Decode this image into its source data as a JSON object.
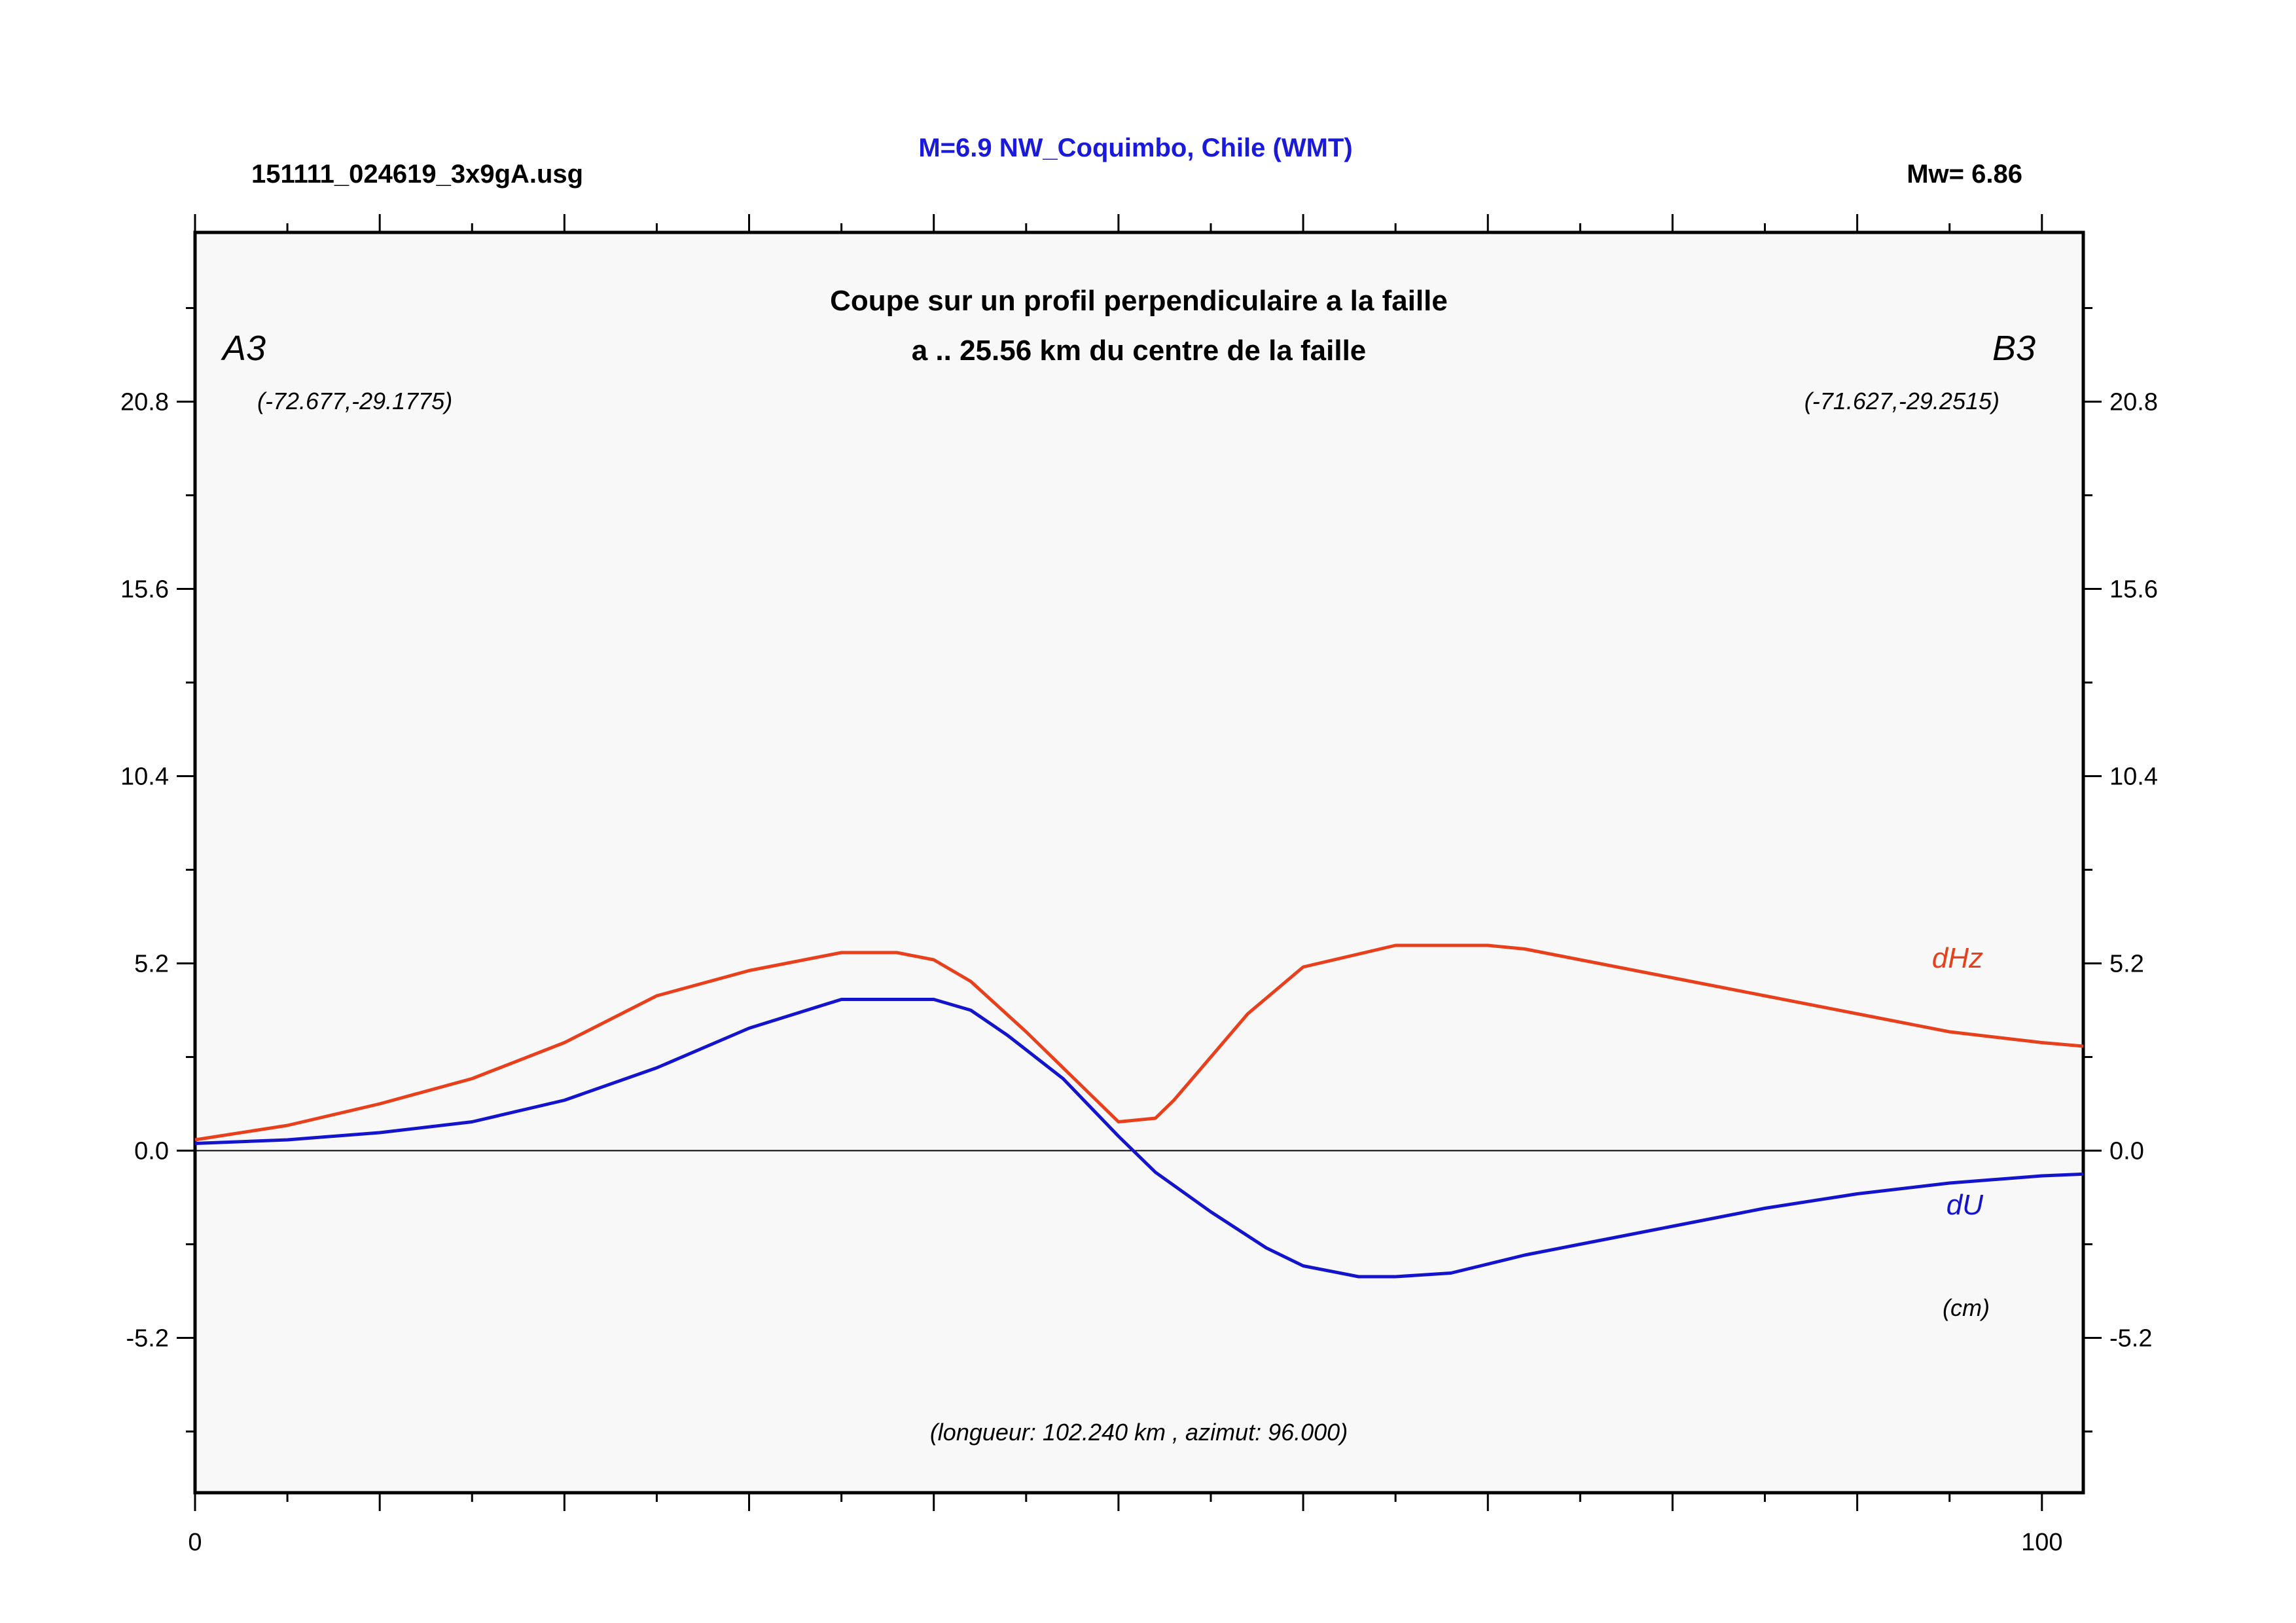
{
  "header": {
    "file_name": "151111_024619_3x9gA.usg",
    "title": "M=6.9 NW_Coquimbo, Chile (WMT)",
    "magnitude": "Mw= 6.86"
  },
  "chart_data": {
    "type": "line",
    "subtitle_line1": "Coupe sur un profil perpendiculaire a la faille",
    "subtitle_line2": "a .. 25.56 km du centre de la faille",
    "start_point": {
      "label": "A3",
      "coords": "(-72.677,-29.1775)"
    },
    "end_point": {
      "label": "B3",
      "coords": "(-71.627,-29.2515)"
    },
    "length_note": "(longueur: 102.240 km , azimut: 96.000)",
    "unit_label": "(cm)",
    "xlim": [
      0,
      102.24
    ],
    "ylim": [
      -9.5,
      25.5
    ],
    "x_tick_labels": [
      {
        "value": 0,
        "label": "0"
      },
      {
        "value": 100,
        "label": "100"
      }
    ],
    "y_tick_labels": [
      {
        "value": 20.8,
        "label": "20.8"
      },
      {
        "value": 15.6,
        "label": "15.6"
      },
      {
        "value": 10.4,
        "label": "10.4"
      },
      {
        "value": 5.2,
        "label": "5.2"
      },
      {
        "value": 0.0,
        "label": "0.0"
      },
      {
        "value": -5.2,
        "label": "-5.2"
      }
    ],
    "series": [
      {
        "name": "dHz",
        "color": "#e8401c",
        "x": [
          0,
          5,
          10,
          15,
          20,
          25,
          30,
          35,
          38,
          40,
          42,
          45,
          48,
          50,
          52,
          53,
          54,
          55,
          57,
          60,
          65,
          70,
          72,
          75,
          80,
          85,
          90,
          95,
          100,
          102.24
        ],
        "y": [
          0.3,
          0.7,
          1.3,
          2.0,
          3.0,
          4.3,
          5.0,
          5.5,
          5.5,
          5.3,
          4.7,
          3.3,
          1.8,
          0.8,
          0.9,
          1.4,
          2.0,
          2.6,
          3.8,
          5.1,
          5.7,
          5.7,
          5.6,
          5.3,
          4.8,
          4.3,
          3.8,
          3.3,
          3.0,
          2.9
        ]
      },
      {
        "name": "dU",
        "color": "#1414cc",
        "x": [
          0,
          5,
          10,
          15,
          20,
          25,
          30,
          35,
          40,
          42,
          44,
          47,
          50,
          52,
          55,
          58,
          60,
          63,
          65,
          68,
          72,
          75,
          80,
          85,
          90,
          95,
          100,
          102.24
        ],
        "y": [
          0.2,
          0.3,
          0.5,
          0.8,
          1.4,
          2.3,
          3.4,
          4.2,
          4.2,
          3.9,
          3.2,
          2.0,
          0.4,
          -0.6,
          -1.7,
          -2.7,
          -3.2,
          -3.5,
          -3.5,
          -3.4,
          -2.9,
          -2.6,
          -2.1,
          -1.6,
          -1.2,
          -0.9,
          -0.7,
          -0.65
        ]
      }
    ]
  }
}
